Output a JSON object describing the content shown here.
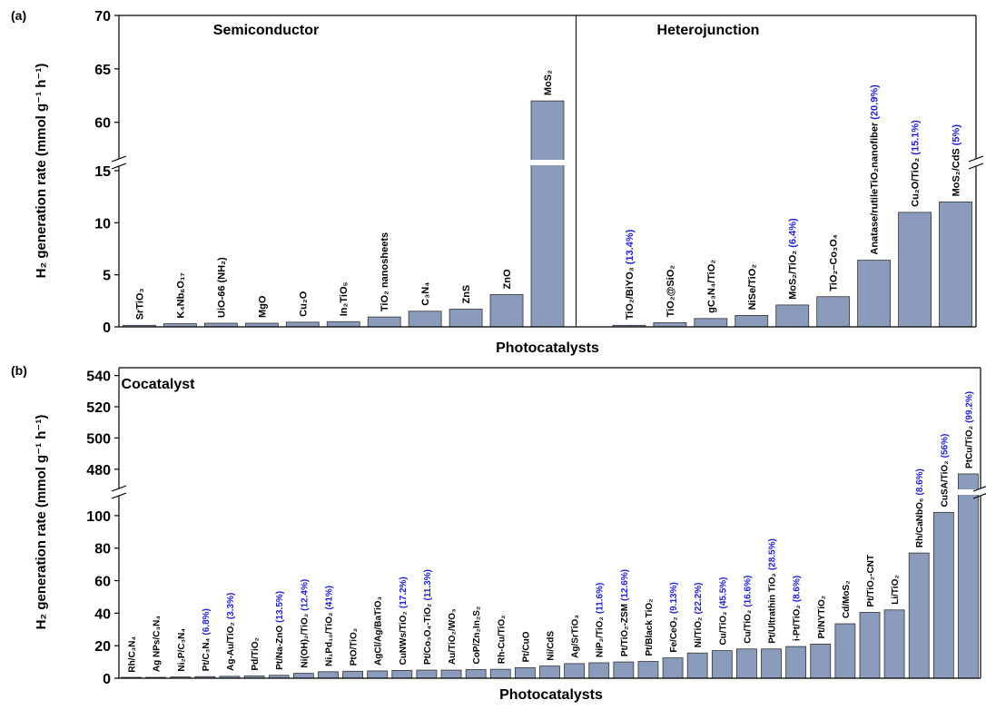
{
  "chart_data": [
    {
      "panel_label": "(a)",
      "type": "bar",
      "ylabel": "H₂ generation rate (mmol g⁻¹ h⁻¹)",
      "xlabel": "Photocatalysts",
      "y_scale": "broken",
      "y_break": [
        15,
        57
      ],
      "ylim": [
        0,
        70
      ],
      "y_ticks": [
        0,
        5,
        10,
        15,
        60,
        65,
        70
      ],
      "groups": [
        {
          "title": "Semiconductor",
          "range": [
            0,
            10
          ]
        },
        {
          "title": "Heterojunction",
          "range": [
            10,
            21
          ]
        }
      ],
      "bar_color": "#8a9bbb",
      "note_color": "#2222cc",
      "categories": [
        {
          "label": "SrTiO₃",
          "note": ""
        },
        {
          "label": "K₄Nb₆O₁₇",
          "note": ""
        },
        {
          "label": "UiO-66 (NH₂)",
          "note": ""
        },
        {
          "label": "MgO",
          "note": ""
        },
        {
          "label": "Cu₂O",
          "note": ""
        },
        {
          "label": "In₂TiO₅",
          "note": ""
        },
        {
          "label": "TiO₂ nanosheets",
          "note": ""
        },
        {
          "label": "C₃N₄",
          "note": ""
        },
        {
          "label": "ZnS",
          "note": ""
        },
        {
          "label": "ZnO",
          "note": ""
        },
        {
          "label": "MoS₂",
          "note": ""
        },
        {
          "label": "TiO₂/BiYO₃",
          "note": "(13.4%)"
        },
        {
          "label": "TiO₂@SiO₂",
          "note": ""
        },
        {
          "label": "gC₃N₄/TiO₂",
          "note": ""
        },
        {
          "label": "NiSe/TiO₂",
          "note": ""
        },
        {
          "label": "MoS₂/TiO₂",
          "note": "(6.4%)"
        },
        {
          "label": "TiO₂–Co₃O₄",
          "note": ""
        },
        {
          "label": "Anatase/rutileTiO₂nanofiber",
          "note": "(20.9%)"
        },
        {
          "label": "Cu₂O/TiO₂",
          "note": "(15.1%)"
        },
        {
          "label": "MoS₂/CdS",
          "note": "(5%)"
        }
      ],
      "values": [
        0.15,
        0.3,
        0.35,
        0.35,
        0.45,
        0.5,
        0.95,
        1.5,
        1.7,
        3.1,
        62,
        0.15,
        0.4,
        0.8,
        1.1,
        2.1,
        2.9,
        6.4,
        11,
        12
      ]
    },
    {
      "panel_label": "(b)",
      "type": "bar",
      "ylabel": "H₂ generation rate (mmol g⁻¹ h⁻¹)",
      "xlabel": "Photocatalysts",
      "y_scale": "broken",
      "y_break": [
        110,
        470
      ],
      "ylim": [
        0,
        545
      ],
      "y_ticks": [
        0,
        20,
        40,
        60,
        80,
        100,
        480,
        500,
        520,
        540
      ],
      "groups": [
        {
          "title": "Cocatalyst",
          "range": [
            0,
            36
          ]
        }
      ],
      "bar_color": "#8a9bbb",
      "note_color": "#2222cc",
      "categories": [
        {
          "label": "Rh/C₃N₄",
          "note": ""
        },
        {
          "label": "Ag NPs/C₃N₄",
          "note": ""
        },
        {
          "label": "Ni₂P/C₃N₄",
          "note": ""
        },
        {
          "label": "Pt/C₃N₄",
          "note": "(6.8%)"
        },
        {
          "label": "Ag-Au/TiO₂",
          "note": "(3.3%)"
        },
        {
          "label": "Pd/TiO₂",
          "note": ""
        },
        {
          "label": "Pt/Na-ZnO",
          "note": "(13.5%)"
        },
        {
          "label": "Ni(OH)₂/TiO₂",
          "note": "(12.4%)"
        },
        {
          "label": "Ni₁Pd₁₀/TiO₂",
          "note": "(41%)"
        },
        {
          "label": "PtO/TiO₂",
          "note": ""
        },
        {
          "label": "AgCl/Ag/BaTiO₃",
          "note": ""
        },
        {
          "label": "CuNWs/TiO₂",
          "note": "(17.2%)"
        },
        {
          "label": "Pt/Co₃O₄-TiO₂",
          "note": "(11.3%)"
        },
        {
          "label": "Au/TiO₂/WO₃",
          "note": ""
        },
        {
          "label": "CoP/Zn₂In₂S₂",
          "note": ""
        },
        {
          "label": "Rh-Cu/TiO₂",
          "note": ""
        },
        {
          "label": "Pt/CuO",
          "note": ""
        },
        {
          "label": "Ni/CdS",
          "note": ""
        },
        {
          "label": "Ag/SrTiO₃",
          "note": ""
        },
        {
          "label": "NiP₂/TiO₂",
          "note": "(11.6%)"
        },
        {
          "label": "Pt/TiO₂-ZSM",
          "note": "(12.6%)"
        },
        {
          "label": "Pt/Black TiO₂",
          "note": ""
        },
        {
          "label": "Fe/CeO₂",
          "note": "(9.13%)"
        },
        {
          "label": "Ni/TiO₂",
          "note": "(22.2%)"
        },
        {
          "label": "Cu/TiO₂",
          "note": "(45.5%)"
        },
        {
          "label": "Cu/TiO₂",
          "note": "(16.6%)"
        },
        {
          "label": "Pt/Ultrathin TiO₂",
          "note": "(28.5%)"
        },
        {
          "label": "i-Pt/TiO₂",
          "note": "(8.6%)"
        },
        {
          "label": "Pt/NYTiO₂",
          "note": ""
        },
        {
          "label": "Cd/MoS₂",
          "note": ""
        },
        {
          "label": "Pt/TiO₂-CNT",
          "note": ""
        },
        {
          "label": "Li/TiO₂",
          "note": ""
        },
        {
          "label": "Rh/CaNbO₆",
          "note": "(8.6%)"
        },
        {
          "label": "CuSA/TiO₂",
          "note": "(56%)"
        },
        {
          "label": "PtCu/TiO₂",
          "note": "(99.2%)"
        }
      ],
      "values": [
        0.2,
        0.5,
        0.8,
        1.0,
        1.2,
        1.4,
        1.8,
        3,
        4,
        4.3,
        4.5,
        4.8,
        5,
        5,
        5.3,
        5.5,
        6.5,
        7.5,
        9,
        9.5,
        10,
        10.3,
        12.5,
        15.5,
        17,
        18,
        18,
        19.5,
        21,
        33.5,
        40.5,
        42,
        77,
        102,
        477
      ]
    }
  ]
}
